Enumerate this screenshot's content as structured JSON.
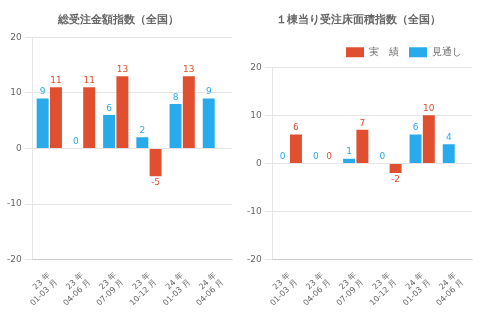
{
  "chart_data": [
    {
      "type": "bar",
      "title": "総受注金額指数（全国）",
      "categories": [
        "23 年\n01-03 月",
        "23 年\n04-06 月",
        "23 年\n07-09 月",
        "23 年\n10-12 月",
        "24 年\n01-03 月",
        "24 年\n04-06 月"
      ],
      "series": [
        {
          "name": "見通し",
          "color": "#29aaeb",
          "values": [
            9,
            0,
            6,
            2,
            8,
            9
          ]
        },
        {
          "name": "実　績",
          "color": "#e05030",
          "values": [
            11,
            11,
            13,
            -5,
            13,
            null
          ]
        }
      ],
      "ylim": [
        -20,
        20
      ],
      "yticks": [
        -20,
        -10,
        0,
        10,
        20
      ],
      "grid": true,
      "data_labels": true
    },
    {
      "type": "bar",
      "title": "１棟当り受注床面積指数（全国）",
      "categories": [
        "23 年\n01-03 月",
        "23 年\n04-06 月",
        "23 年\n07-09 月",
        "23 年\n10-12 月",
        "24 年\n01-03 月",
        "24 年\n04-06 月"
      ],
      "series": [
        {
          "name": "見通し",
          "color": "#29aaeb",
          "values": [
            0,
            0,
            1,
            0,
            6,
            4
          ]
        },
        {
          "name": "実　績",
          "color": "#e05030",
          "values": [
            6,
            0,
            7,
            -2,
            10,
            null
          ]
        }
      ],
      "ylim": [
        -20,
        20
      ],
      "yticks": [
        -20,
        -10,
        0,
        10,
        20
      ],
      "grid": true,
      "data_labels": true,
      "legend": "upper right"
    }
  ]
}
